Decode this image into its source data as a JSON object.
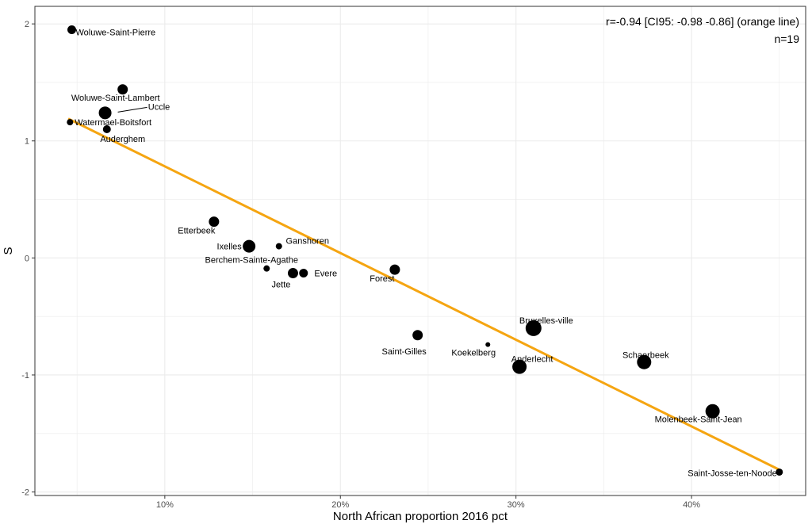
{
  "chart_data": {
    "type": "scatter",
    "title": "",
    "xlabel": "North African proportion 2016 pct",
    "ylabel": "S",
    "xlim": [
      2.6,
      46.5
    ],
    "ylim": [
      -2.03,
      2.15
    ],
    "x_ticks": [
      10,
      20,
      30,
      40
    ],
    "x_tick_labels": [
      "10%",
      "20%",
      "30%",
      "40%"
    ],
    "y_ticks": [
      -2,
      -1,
      0,
      1,
      2
    ],
    "y_tick_labels": [
      "-2",
      "-1",
      "0",
      "1",
      "2"
    ],
    "grid": true,
    "theme": "bw",
    "annotation": [
      "r=-0.94 [CI95: -0.98 -0.86] (orange line)",
      "n=19"
    ],
    "fit_line": {
      "color": "#F5A511",
      "x": [
        4.5,
        45.0
      ],
      "y": [
        1.19,
        -1.81
      ]
    },
    "points": [
      {
        "name": "Woluwe-Saint-Pierre",
        "x": 4.7,
        "y": 1.95,
        "size": 5.5
      },
      {
        "name": "Woluwe-Saint-Lambert",
        "x": 7.6,
        "y": 1.44,
        "size": 6.5
      },
      {
        "name": "Uccle",
        "x": 6.6,
        "y": 1.24,
        "size": 8
      },
      {
        "name": "Watermael-Boitsfort",
        "x": 4.6,
        "y": 1.16,
        "size": 4
      },
      {
        "name": "Auderghem",
        "x": 6.7,
        "y": 1.1,
        "size": 5
      },
      {
        "name": "Etterbeek",
        "x": 12.8,
        "y": 0.31,
        "size": 6.5
      },
      {
        "name": "Ixelles",
        "x": 14.8,
        "y": 0.1,
        "size": 8
      },
      {
        "name": "Ganshoren",
        "x": 16.5,
        "y": 0.1,
        "size": 4
      },
      {
        "name": "Berchem-Sainte-Agathe",
        "x": 15.8,
        "y": -0.09,
        "size": 4
      },
      {
        "name": "Jette",
        "x": 17.3,
        "y": -0.13,
        "size": 6.5
      },
      {
        "name": "Evere",
        "x": 17.9,
        "y": -0.13,
        "size": 5.5
      },
      {
        "name": "Forest",
        "x": 23.1,
        "y": -0.1,
        "size": 6.5
      },
      {
        "name": "Saint-Gilles",
        "x": 24.4,
        "y": -0.66,
        "size": 6.5
      },
      {
        "name": "Koekelberg",
        "x": 28.4,
        "y": -0.74,
        "size": 3
      },
      {
        "name": "Bruxelles-ville",
        "x": 31.0,
        "y": -0.6,
        "size": 10
      },
      {
        "name": "Anderlecht",
        "x": 30.2,
        "y": -0.93,
        "size": 9
      },
      {
        "name": "Schaerbeek",
        "x": 37.3,
        "y": -0.89,
        "size": 9
      },
      {
        "name": "Molenbeek-Saint-Jean",
        "x": 41.2,
        "y": -1.31,
        "size": 9
      },
      {
        "name": "Saint-Josse-ten-Noode",
        "x": 45.0,
        "y": -1.83,
        "size": 4.5
      }
    ]
  }
}
